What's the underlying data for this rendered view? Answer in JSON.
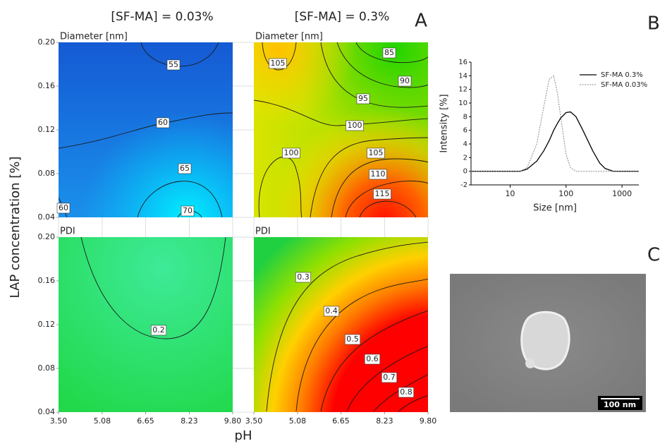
{
  "figure": {
    "xlabel": "pH",
    "ylabel": "LAP concentration [%]"
  },
  "chart_data": [
    {
      "type": "contour",
      "title": "Diameter [nm]",
      "column_title": "[SF-MA] = 0.03%",
      "xlim": [
        3.5,
        9.8
      ],
      "ylim": [
        0.04,
        0.2
      ],
      "yticks": [
        {
          "value": 0.04,
          "label": "0.04"
        },
        {
          "value": 0.08,
          "label": "0.08"
        },
        {
          "value": 0.12,
          "label": "0.12"
        },
        {
          "value": 0.16,
          "label": "0.16"
        },
        {
          "value": 0.2,
          "label": "0.20"
        }
      ],
      "contour_labels": [
        55,
        60,
        65,
        70,
        60
      ]
    },
    {
      "type": "contour",
      "title": "Diameter [nm]",
      "column_title": "[SF-MA] = 0.3%",
      "panel_label": "A",
      "xlim": [
        3.5,
        9.8
      ],
      "ylim": [
        0.04,
        0.2
      ],
      "contour_labels": [
        85,
        105,
        90,
        95,
        100,
        100,
        105,
        110,
        115
      ]
    },
    {
      "type": "contour",
      "title": "PDI",
      "xlim": [
        3.5,
        9.8
      ],
      "ylim": [
        0.04,
        0.2
      ],
      "xticks": [
        {
          "value": 3.5,
          "label": "3.50"
        },
        {
          "value": 5.08,
          "label": "5.08"
        },
        {
          "value": 6.65,
          "label": "6.65"
        },
        {
          "value": 8.23,
          "label": "8.23"
        },
        {
          "value": 9.8,
          "label": "9.80"
        }
      ],
      "yticks": [
        {
          "value": 0.04,
          "label": "0.04"
        },
        {
          "value": 0.08,
          "label": "0.08"
        },
        {
          "value": 0.12,
          "label": "0.12"
        },
        {
          "value": 0.16,
          "label": "0.16"
        },
        {
          "value": 0.2,
          "label": "0.20"
        }
      ],
      "contour_labels": [
        0.2
      ]
    },
    {
      "type": "contour",
      "title": "PDI",
      "xlim": [
        3.5,
        9.8
      ],
      "ylim": [
        0.04,
        0.2
      ],
      "xticks": [
        {
          "value": 3.5,
          "label": "3.50"
        },
        {
          "value": 5.08,
          "label": "5.08"
        },
        {
          "value": 6.65,
          "label": "6.65"
        },
        {
          "value": 8.23,
          "label": "8.23"
        },
        {
          "value": 9.8,
          "label": "9.80"
        }
      ],
      "contour_labels": [
        0.3,
        0.4,
        0.5,
        0.6,
        0.7,
        0.8
      ]
    },
    {
      "type": "line",
      "panel_label": "B",
      "xlabel": "Size [nm]",
      "ylabel": "Intensity [%]",
      "log_x": true,
      "xlim": [
        2,
        2000
      ],
      "ylim": [
        -2,
        16
      ],
      "xticks": [
        10,
        100,
        1000
      ],
      "yticks": [
        -2,
        0,
        2,
        4,
        6,
        8,
        10,
        12,
        14,
        16
      ],
      "legend": "upper right",
      "x": [
        2,
        5,
        10,
        15,
        20,
        30,
        40,
        50,
        60,
        70,
        80,
        100,
        120,
        150,
        200,
        300,
        400,
        500,
        700,
        1000,
        2000
      ],
      "series": [
        {
          "name": "SF-MA 0.3%",
          "color": "#000000",
          "dash": false,
          "values": [
            0,
            0,
            0,
            0,
            0.3,
            1.5,
            3,
            4.5,
            6,
            7,
            7.8,
            8.6,
            8.7,
            8,
            6,
            3,
            1.2,
            0.4,
            0,
            0,
            0
          ]
        },
        {
          "name": "SF-MA 0.03%",
          "color": "#888888",
          "dash": true,
          "values": [
            0,
            0,
            0,
            0,
            0.5,
            4,
            9.5,
            13.5,
            14,
            11.5,
            8,
            2.5,
            0.5,
            0,
            0,
            0,
            0,
            0,
            0,
            0,
            0
          ]
        }
      ]
    }
  ],
  "image": {
    "panel_label": "C",
    "scale_bar": "100 nm"
  }
}
